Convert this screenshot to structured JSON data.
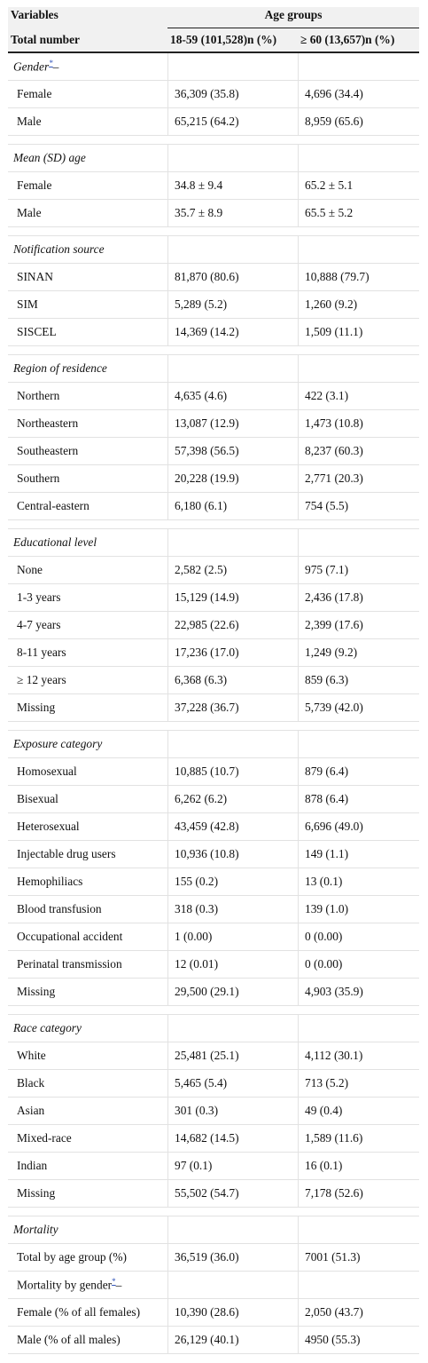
{
  "header": {
    "variables": "Variables",
    "age_groups": "Age groups",
    "total_number": "Total number",
    "col_young": "18-59 (101,528)n (%)",
    "col_old": "≥ 60 (13,657)n (%)"
  },
  "sections": [
    {
      "title": "Gender",
      "footnote": "*",
      "rows": [
        {
          "label": "Female",
          "young": "36,309 (35.8)",
          "old": "4,696 (34.4)"
        },
        {
          "label": "Male",
          "young": "65,215 (64.2)",
          "old": "8,959 (65.6)"
        }
      ]
    },
    {
      "title": "Mean (SD) age",
      "rows": [
        {
          "label": "Female",
          "young": "34.8 ± 9.4",
          "old": "65.2 ± 5.1"
        },
        {
          "label": "Male",
          "young": "35.7 ± 8.9",
          "old": "65.5 ± 5.2"
        }
      ]
    },
    {
      "title": "Notification source",
      "rows": [
        {
          "label": "SINAN",
          "young": "81,870 (80.6)",
          "old": "10,888 (79.7)"
        },
        {
          "label": "SIM",
          "young": "5,289 (5.2)",
          "old": "1,260 (9.2)"
        },
        {
          "label": "SISCEL",
          "young": "14,369 (14.2)",
          "old": "1,509 (11.1)"
        }
      ]
    },
    {
      "title": "Region of residence",
      "rows": [
        {
          "label": "Northern",
          "young": "4,635 (4.6)",
          "old": "422 (3.1)"
        },
        {
          "label": "Northeastern",
          "young": "13,087 (12.9)",
          "old": "1,473 (10.8)"
        },
        {
          "label": "Southeastern",
          "young": "57,398 (56.5)",
          "old": "8,237 (60.3)"
        },
        {
          "label": "Southern",
          "young": "20,228 (19.9)",
          "old": "2,771 (20.3)"
        },
        {
          "label": "Central-eastern",
          "young": "6,180 (6.1)",
          "old": "754 (5.5)"
        }
      ]
    },
    {
      "title": "Educational level",
      "rows": [
        {
          "label": "None",
          "young": "2,582 (2.5)",
          "old": "975 (7.1)"
        },
        {
          "label": "1-3 years",
          "young": "15,129 (14.9)",
          "old": "2,436 (17.8)"
        },
        {
          "label": "4-7 years",
          "young": "22,985 (22.6)",
          "old": "2,399 (17.6)"
        },
        {
          "label": "8-11 years",
          "young": "17,236 (17.0)",
          "old": "1,249 (9.2)"
        },
        {
          "label": "≥ 12 years",
          "young": "6,368 (6.3)",
          "old": "859 (6.3)"
        },
        {
          "label": "Missing",
          "young": "37,228 (36.7)",
          "old": "5,739 (42.0)"
        }
      ]
    },
    {
      "title": "Exposure category",
      "rows": [
        {
          "label": "Homosexual",
          "young": "10,885 (10.7)",
          "old": "879 (6.4)"
        },
        {
          "label": "Bisexual",
          "young": "6,262 (6.2)",
          "old": "878 (6.4)"
        },
        {
          "label": "Heterosexual",
          "young": "43,459 (42.8)",
          "old": "6,696 (49.0)"
        },
        {
          "label": "Injectable drug users",
          "young": "10,936 (10.8)",
          "old": "149 (1.1)"
        },
        {
          "label": "Hemophiliacs",
          "young": "155 (0.2)",
          "old": "13 (0.1)"
        },
        {
          "label": "Blood transfusion",
          "young": "318 (0.3)",
          "old": "139 (1.0)"
        },
        {
          "label": "Occupational accident",
          "young": "1 (0.00)",
          "old": "0 (0.00)"
        },
        {
          "label": "Perinatal transmission",
          "young": "12 (0.01)",
          "old": "0 (0.00)"
        },
        {
          "label": "Missing",
          "young": "29,500 (29.1)",
          "old": "4,903 (35.9)"
        }
      ]
    },
    {
      "title": "Race category",
      "rows": [
        {
          "label": "White",
          "young": "25,481 (25.1)",
          "old": "4,112 (30.1)"
        },
        {
          "label": "Black",
          "young": "5,465 (5.4)",
          "old": "713 (5.2)"
        },
        {
          "label": "Asian",
          "young": "301 (0.3)",
          "old": "49 (0.4)"
        },
        {
          "label": "Mixed-race",
          "young": "14,682 (14.5)",
          "old": "1,589 (11.6)"
        },
        {
          "label": "Indian",
          "young": "97 (0.1)",
          "old": "16 (0.1)"
        },
        {
          "label": "Missing",
          "young": "55,502 (54.7)",
          "old": "7,178 (52.6)"
        }
      ]
    },
    {
      "title": "Mortality",
      "rows": [
        {
          "label": "Total by age group (%)",
          "young": "36,519 (36.0)",
          "old": "7001 (51.3)"
        },
        {
          "label": "Mortality by gender",
          "footnote": "*",
          "young": "",
          "old": ""
        },
        {
          "label": "Female (% of all females)",
          "young": "10,390 (28.6)",
          "old": "2,050 (43.7)"
        },
        {
          "label": "Male (% of all males)",
          "young": "26,129 (40.1)",
          "old": "4950 (55.3)"
        }
      ]
    }
  ]
}
